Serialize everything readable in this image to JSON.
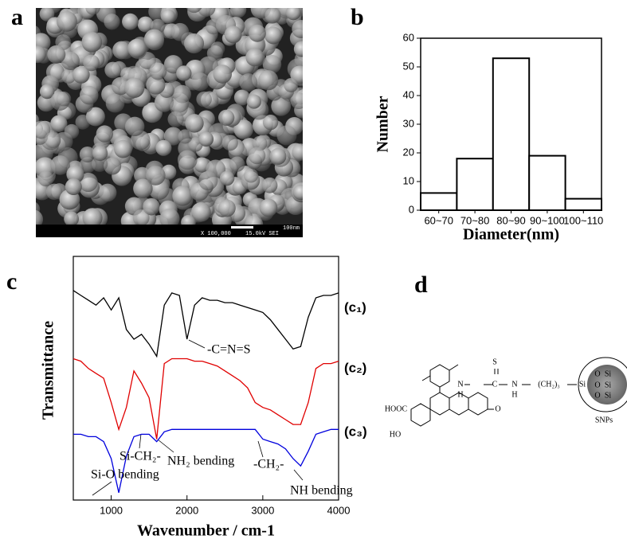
{
  "panels": {
    "labels": [
      "a",
      "b",
      "c",
      "d"
    ]
  },
  "sem_image": {
    "magnification": "X 100,000",
    "voltage": "15.0kV SEI",
    "scale": "100nm"
  },
  "diagram": {
    "labels": [
      "S",
      "N",
      "H",
      "C",
      "N",
      "H",
      "(CH₂)₃",
      "Si",
      "O",
      "O",
      "O",
      "Si",
      "Si",
      "Si",
      "HOOC",
      "HO",
      "O",
      "SNPs"
    ]
  },
  "chart_data": [
    {
      "type": "bar",
      "categories": [
        "60~70",
        "70~80",
        "80~90",
        "90~100",
        "100~110"
      ],
      "values": [
        6,
        18,
        53,
        19,
        4
      ],
      "color": "#ffffff",
      "edge_color": "#000000",
      "xlabel": "Diameter(nm)",
      "ylabel": "Number",
      "ylim": [
        0,
        60
      ],
      "yticks": [
        0,
        10,
        20,
        30,
        40,
        50,
        60
      ]
    },
    {
      "type": "line",
      "xlabel": "Wavenumber / cm-1",
      "ylabel": "Transmittance",
      "x": [
        500,
        600,
        700,
        800,
        900,
        1000,
        1100,
        1200,
        1300,
        1400,
        1500,
        1600,
        1700,
        1800,
        1900,
        2000,
        2100,
        2200,
        2300,
        2400,
        2500,
        2600,
        2700,
        2800,
        2900,
        3000,
        3100,
        3200,
        3300,
        3400,
        3500,
        3600,
        3700,
        3800,
        3900,
        4000
      ],
      "xlim": [
        500,
        4000
      ],
      "xticks": [
        1000,
        2000,
        3000,
        4000
      ],
      "ylim": [
        0,
        100
      ],
      "series": [
        {
          "name": "(c₁)",
          "color": "#000000",
          "values": [
            86,
            84,
            82,
            80,
            83,
            78,
            83,
            70,
            66,
            68,
            64,
            59,
            80,
            85,
            84,
            66,
            80,
            83,
            82,
            82,
            81,
            81,
            80,
            79,
            78,
            77,
            74,
            70,
            66,
            62,
            63,
            75,
            83,
            84,
            84,
            85
          ]
        },
        {
          "name": "(c₂)",
          "color": "#e00000",
          "values": [
            58,
            57,
            54,
            52,
            50,
            40,
            29,
            38,
            53,
            48,
            42,
            25,
            56,
            58,
            58,
            58,
            57,
            57,
            56,
            55,
            53,
            51,
            49,
            46,
            40,
            38,
            37,
            35,
            33,
            31,
            31,
            40,
            54,
            56,
            56,
            57
          ]
        },
        {
          "name": "(c₃)",
          "color": "#0000dd",
          "values": [
            27,
            27,
            26,
            26,
            24,
            17,
            3,
            18,
            26,
            27,
            27,
            24,
            28,
            29,
            29,
            29,
            29,
            29,
            29,
            29,
            29,
            29,
            29,
            29,
            29,
            25,
            24,
            23,
            21,
            17,
            14,
            20,
            27,
            28,
            29,
            29
          ]
        }
      ],
      "annotations": [
        "-C=N=S",
        "Si-CH₂-",
        "NH₂ bending",
        "-CH₂-",
        "Si-O bending",
        "NH bending"
      ]
    }
  ]
}
